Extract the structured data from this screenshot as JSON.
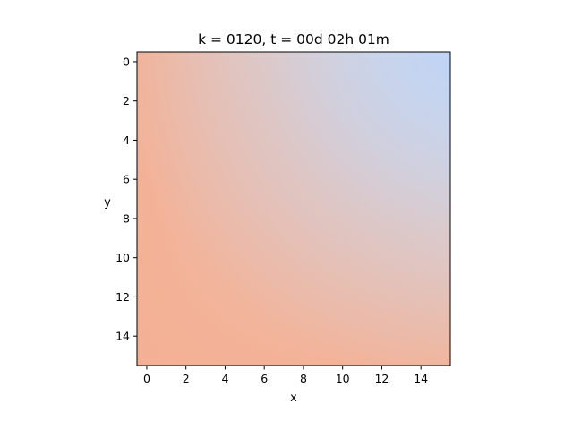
{
  "chart_data": {
    "type": "heatmap",
    "title": "k = 0120, t = 00d 02h 01m",
    "xlabel": "x",
    "ylabel": "y",
    "x_ticks": [
      "0",
      "2",
      "4",
      "6",
      "8",
      "10",
      "12",
      "14"
    ],
    "y_ticks": [
      "0",
      "2",
      "4",
      "6",
      "8",
      "10",
      "12",
      "14"
    ],
    "xlim": [
      -0.5,
      15.5
    ],
    "ylim": [
      15.5,
      -0.5
    ],
    "y_axis_inverted": true,
    "grid": false,
    "colormap": "coolwarm",
    "colors": {
      "warm": "#f4b094",
      "neutral": "#dcdbdb",
      "cool": "#c0d4f5"
    },
    "field_description": "Smooth field: warm along the left edge (x=0) and bottom edge (y=15), cool at the top-right corner (x=15, y=0)"
  }
}
